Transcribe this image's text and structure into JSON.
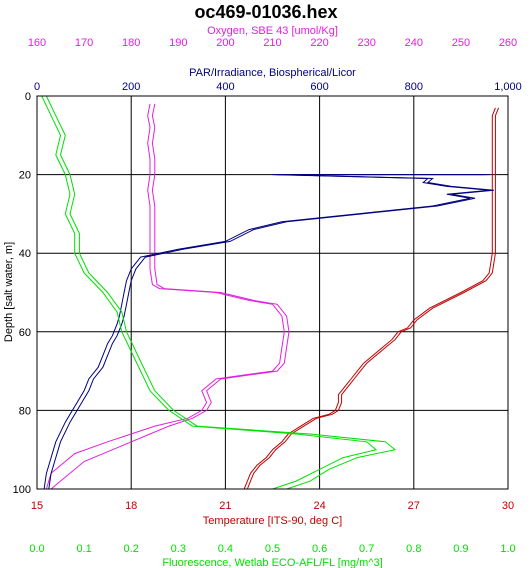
{
  "chart_data": {
    "type": "line",
    "title": "oc469-01036.hex",
    "y_axis": {
      "label": "Depth [salt water, m]",
      "ticks": [
        0,
        20,
        40,
        60,
        80,
        100
      ],
      "range": [
        0,
        100
      ],
      "inverted": true,
      "color": "#000000"
    },
    "x_axes": [
      {
        "id": "oxygen",
        "position": "top-outer",
        "label": "Oxygen, SBE 43 [umol/Kg]",
        "color": "#e020e0",
        "range": [
          160,
          260
        ],
        "ticks": [
          160,
          170,
          180,
          190,
          200,
          210,
          220,
          230,
          240,
          250,
          260
        ]
      },
      {
        "id": "par",
        "position": "top-inner",
        "label": "PAR/Irradiance, Biospherical/Licor",
        "color": "#000080",
        "range": [
          0,
          1000
        ],
        "ticks": [
          0,
          200,
          400,
          600,
          800,
          1000
        ],
        "tick_labels": [
          "0",
          "200",
          "400",
          "600",
          "800",
          "1,000"
        ]
      },
      {
        "id": "temperature",
        "position": "bottom-inner",
        "label": "Temperature [ITS-90, deg C]",
        "color": "#c00000",
        "range": [
          15,
          30
        ],
        "ticks": [
          15,
          18,
          21,
          24,
          27,
          30
        ]
      },
      {
        "id": "fluorescence",
        "position": "bottom-outer",
        "label": "Fluorescence, Wetlab ECO-AFL/FL [mg/m^3]",
        "color": "#00e000",
        "range": [
          0,
          1
        ],
        "ticks": [
          0,
          0.1,
          0.2,
          0.3,
          0.4,
          0.5,
          0.6,
          0.7,
          0.8,
          0.9,
          1.0
        ],
        "tick_labels": [
          "0.0",
          "0.1",
          "0.2",
          "0.3",
          "0.4",
          "0.5",
          "0.6",
          "0.7",
          "0.8",
          "0.9",
          "1.0"
        ]
      }
    ],
    "grid": true,
    "series": [
      {
        "axis": "temperature",
        "color": "#c00000",
        "points": [
          [
            29.6,
            3
          ],
          [
            29.5,
            5
          ],
          [
            29.5,
            10
          ],
          [
            29.5,
            20
          ],
          [
            29.5,
            30
          ],
          [
            29.5,
            40
          ],
          [
            29.4,
            45
          ],
          [
            29.2,
            47
          ],
          [
            28.5,
            50
          ],
          [
            27.5,
            54
          ],
          [
            27,
            57
          ],
          [
            26.8,
            59
          ],
          [
            26.5,
            60
          ],
          [
            26.3,
            62
          ],
          [
            26,
            64
          ],
          [
            25.7,
            66
          ],
          [
            25.4,
            68
          ],
          [
            25.2,
            70
          ],
          [
            25,
            72
          ],
          [
            24.8,
            74
          ],
          [
            24.6,
            76
          ],
          [
            24.6,
            78
          ],
          [
            24.5,
            80
          ],
          [
            24.3,
            81
          ],
          [
            23.8,
            82
          ],
          [
            23.4,
            84
          ],
          [
            23,
            86
          ],
          [
            22.8,
            88
          ],
          [
            22.5,
            90
          ],
          [
            22.3,
            92
          ],
          [
            22.0,
            94
          ],
          [
            21.8,
            96
          ],
          [
            21.7,
            98
          ],
          [
            21.6,
            100
          ]
        ]
      },
      {
        "axis": "temperature",
        "color": "#c00000",
        "points": [
          [
            29.7,
            3
          ],
          [
            29.6,
            5
          ],
          [
            29.6,
            10
          ],
          [
            29.6,
            20
          ],
          [
            29.6,
            30
          ],
          [
            29.6,
            40
          ],
          [
            29.5,
            45
          ],
          [
            29.3,
            47
          ],
          [
            28.6,
            50
          ],
          [
            27.6,
            54
          ],
          [
            27.1,
            57
          ],
          [
            26.9,
            59
          ],
          [
            26.6,
            60
          ],
          [
            26.4,
            62
          ],
          [
            26.1,
            64
          ],
          [
            25.8,
            66
          ],
          [
            25.5,
            68
          ],
          [
            25.3,
            70
          ],
          [
            25.1,
            72
          ],
          [
            24.9,
            74
          ],
          [
            24.7,
            76
          ],
          [
            24.7,
            78
          ],
          [
            24.6,
            80
          ],
          [
            24.4,
            81
          ],
          [
            23.9,
            82
          ],
          [
            23.5,
            84
          ],
          [
            23.1,
            86
          ],
          [
            22.9,
            88
          ],
          [
            22.6,
            90
          ],
          [
            22.4,
            92
          ],
          [
            22.1,
            94
          ],
          [
            21.9,
            96
          ],
          [
            21.8,
            98
          ],
          [
            21.7,
            100
          ]
        ]
      },
      {
        "axis": "oxygen",
        "color": "#e020e0",
        "points": [
          [
            184,
            2
          ],
          [
            183.5,
            5
          ],
          [
            184,
            8
          ],
          [
            183.5,
            12
          ],
          [
            184,
            16
          ],
          [
            184,
            20
          ],
          [
            183.5,
            24
          ],
          [
            184,
            28
          ],
          [
            184,
            32
          ],
          [
            184,
            36
          ],
          [
            184,
            40
          ],
          [
            184,
            44
          ],
          [
            184.5,
            48
          ],
          [
            186,
            49
          ],
          [
            198,
            50
          ],
          [
            205,
            52
          ],
          [
            210,
            53
          ],
          [
            212,
            56
          ],
          [
            212.5,
            60
          ],
          [
            212,
            64
          ],
          [
            211.5,
            68
          ],
          [
            210,
            70
          ],
          [
            204,
            71
          ],
          [
            198,
            72
          ],
          [
            195,
            75
          ],
          [
            196,
            78
          ],
          [
            195,
            80
          ],
          [
            192,
            82
          ],
          [
            185,
            84
          ],
          [
            180,
            86
          ],
          [
            175,
            88
          ],
          [
            168,
            91
          ],
          [
            163,
            96
          ],
          [
            162,
            100
          ]
        ]
      },
      {
        "axis": "oxygen",
        "color": "#e020e0",
        "points": [
          [
            185,
            2
          ],
          [
            184.5,
            5
          ],
          [
            185,
            8
          ],
          [
            184.5,
            12
          ],
          [
            185,
            16
          ],
          [
            185,
            20
          ],
          [
            184.5,
            24
          ],
          [
            185,
            28
          ],
          [
            185,
            32
          ],
          [
            185,
            36
          ],
          [
            185,
            40
          ],
          [
            185,
            44
          ],
          [
            185.5,
            48
          ],
          [
            187,
            49
          ],
          [
            199,
            50
          ],
          [
            206,
            52
          ],
          [
            211,
            53
          ],
          [
            213,
            56
          ],
          [
            213.5,
            60
          ],
          [
            213,
            64
          ],
          [
            212.5,
            68
          ],
          [
            211,
            70
          ],
          [
            205,
            71
          ],
          [
            199,
            72
          ],
          [
            196,
            75
          ],
          [
            197,
            78
          ],
          [
            196,
            80
          ],
          [
            193,
            82
          ],
          [
            188,
            84
          ],
          [
            184,
            86
          ],
          [
            178,
            89
          ],
          [
            170,
            93
          ],
          [
            165,
            98
          ],
          [
            163,
            100
          ]
        ]
      },
      {
        "axis": "par",
        "color": "#000080",
        "points": [
          [
            950,
            20
          ],
          [
            700,
            20
          ],
          [
            500,
            20
          ],
          [
            830,
            21
          ],
          [
            820,
            22
          ],
          [
            870,
            23
          ],
          [
            960,
            24
          ],
          [
            870,
            25
          ],
          [
            920,
            26
          ],
          [
            840,
            28
          ],
          [
            680,
            30
          ],
          [
            520,
            32
          ],
          [
            450,
            34
          ],
          [
            400,
            37
          ],
          [
            300,
            39
          ],
          [
            220,
            41
          ],
          [
            200,
            44
          ],
          [
            190,
            47
          ],
          [
            185,
            50
          ],
          [
            180,
            53
          ],
          [
            175,
            56
          ],
          [
            170,
            58
          ],
          [
            160,
            61
          ],
          [
            150,
            63
          ],
          [
            140,
            66
          ],
          [
            130,
            69
          ],
          [
            110,
            72
          ],
          [
            100,
            75
          ],
          [
            80,
            79
          ],
          [
            60,
            83
          ],
          [
            40,
            88
          ],
          [
            30,
            92
          ],
          [
            20,
            96
          ],
          [
            15,
            100
          ]
        ]
      },
      {
        "axis": "par",
        "color": "#000080",
        "points": [
          [
            960,
            20
          ],
          [
            710,
            20
          ],
          [
            510,
            20
          ],
          [
            840,
            21
          ],
          [
            830,
            22
          ],
          [
            880,
            23
          ],
          [
            970,
            24
          ],
          [
            880,
            25
          ],
          [
            930,
            26
          ],
          [
            850,
            28
          ],
          [
            690,
            30
          ],
          [
            530,
            32
          ],
          [
            460,
            34
          ],
          [
            410,
            37
          ],
          [
            310,
            39
          ],
          [
            230,
            41
          ],
          [
            210,
            44
          ],
          [
            200,
            47
          ],
          [
            195,
            50
          ],
          [
            190,
            53
          ],
          [
            185,
            56
          ],
          [
            180,
            58
          ],
          [
            170,
            61
          ],
          [
            160,
            63
          ],
          [
            150,
            66
          ],
          [
            140,
            69
          ],
          [
            120,
            72
          ],
          [
            110,
            75
          ],
          [
            90,
            79
          ],
          [
            70,
            83
          ],
          [
            50,
            88
          ],
          [
            40,
            92
          ],
          [
            30,
            96
          ],
          [
            25,
            100
          ]
        ]
      },
      {
        "axis": "fluorescence",
        "color": "#00e000",
        "points": [
          [
            0.01,
            0
          ],
          [
            0.03,
            5
          ],
          [
            0.05,
            10
          ],
          [
            0.04,
            15
          ],
          [
            0.06,
            20
          ],
          [
            0.07,
            25
          ],
          [
            0.06,
            30
          ],
          [
            0.08,
            35
          ],
          [
            0.08,
            40
          ],
          [
            0.1,
            45
          ],
          [
            0.14,
            50
          ],
          [
            0.17,
            55
          ],
          [
            0.18,
            60
          ],
          [
            0.2,
            65
          ],
          [
            0.22,
            70
          ],
          [
            0.24,
            75
          ],
          [
            0.28,
            80
          ],
          [
            0.33,
            84
          ],
          [
            0.55,
            86
          ],
          [
            0.7,
            88
          ],
          [
            0.72,
            90
          ],
          [
            0.65,
            92
          ],
          [
            0.6,
            95
          ],
          [
            0.55,
            98
          ],
          [
            0.5,
            100
          ]
        ]
      },
      {
        "axis": "fluorescence",
        "color": "#00e000",
        "points": [
          [
            0.02,
            0
          ],
          [
            0.04,
            5
          ],
          [
            0.06,
            10
          ],
          [
            0.05,
            15
          ],
          [
            0.07,
            20
          ],
          [
            0.08,
            25
          ],
          [
            0.07,
            30
          ],
          [
            0.09,
            35
          ],
          [
            0.09,
            40
          ],
          [
            0.11,
            45
          ],
          [
            0.15,
            50
          ],
          [
            0.18,
            55
          ],
          [
            0.19,
            60
          ],
          [
            0.21,
            65
          ],
          [
            0.23,
            70
          ],
          [
            0.25,
            75
          ],
          [
            0.29,
            80
          ],
          [
            0.34,
            84
          ],
          [
            0.58,
            86
          ],
          [
            0.74,
            88
          ],
          [
            0.76,
            90
          ],
          [
            0.68,
            92
          ],
          [
            0.62,
            95
          ],
          [
            0.58,
            98
          ],
          [
            0.53,
            100
          ]
        ]
      }
    ]
  }
}
